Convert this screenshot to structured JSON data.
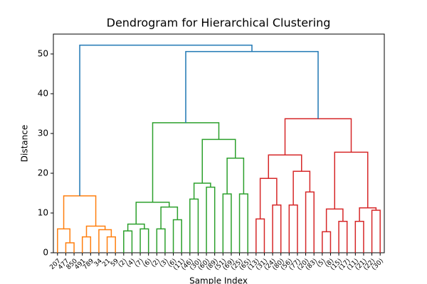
{
  "chart_data": {
    "type": "dendrogram",
    "title": "Dendrogram for Hierarchical Clustering",
    "xlabel": "Sample Index",
    "ylabel": "Distance",
    "ylim": [
      0,
      55
    ],
    "yticks": [
      0,
      10,
      20,
      30,
      40,
      50
    ],
    "tree": {
      "height": 52.2,
      "color": "#1f77b4",
      "children": [
        {
          "height": 14.3,
          "color": "#ff7f0e",
          "children": [
            {
              "height": 6,
              "color": "#ff7f0e",
              "children": [
                {
                  "label": "207"
                },
                {
                  "height": 2.5,
                  "color": "#ff7f0e",
                  "children": [
                    {
                      "label": "477"
                    },
                    {
                      "label": "850"
                    }
                  ]
                }
              ]
            },
            {
              "height": 6.7,
              "color": "#ff7f0e",
              "children": [
                {
                  "height": 4,
                  "color": "#ff7f0e",
                  "children": [
                    {
                      "label": "491"
                    },
                    {
                      "label": "789"
                    }
                  ]
                },
                {
                  "height": 5.8,
                  "color": "#ff7f0e",
                  "children": [
                    {
                      "label": "34"
                    },
                    {
                      "height": 4,
                      "color": "#ff7f0e",
                      "children": [
                        {
                          "label": "21"
                        },
                        {
                          "label": "59"
                        }
                      ]
                    }
                  ]
                }
              ]
            }
          ]
        },
        {
          "height": 50.6,
          "color": "#1f77b4",
          "children": [
            {
              "height": 32.7,
              "color": "#2ca02c",
              "children": [
                {
                  "height": 12.7,
                  "color": "#2ca02c",
                  "children": [
                    {
                      "height": 7.2,
                      "color": "#2ca02c",
                      "children": [
                        {
                          "height": 5.5,
                          "color": "#2ca02c",
                          "children": [
                            {
                              "label": "(2)"
                            },
                            {
                              "label": "(4)"
                            }
                          ]
                        },
                        {
                          "height": 6,
                          "color": "#2ca02c",
                          "children": [
                            {
                              "label": "(7)"
                            },
                            {
                              "label": "(6)"
                            }
                          ]
                        }
                      ]
                    },
                    {
                      "height": 11.5,
                      "color": "#2ca02c",
                      "children": [
                        {
                          "height": 6,
                          "color": "#2ca02c",
                          "children": [
                            {
                              "label": "(2)"
                            },
                            {
                              "label": "(3)"
                            }
                          ]
                        },
                        {
                          "height": 8.3,
                          "color": "#2ca02c",
                          "children": [
                            {
                              "label": "(6)"
                            },
                            {
                              "label": "(11)"
                            }
                          ]
                        }
                      ]
                    }
                  ]
                },
                {
                  "height": 28.5,
                  "color": "#2ca02c",
                  "children": [
                    {
                      "height": 17.5,
                      "color": "#2ca02c",
                      "children": [
                        {
                          "height": 13.5,
                          "color": "#2ca02c",
                          "children": [
                            {
                              "label": "(46)"
                            },
                            {
                              "label": "(30)"
                            }
                          ]
                        },
                        {
                          "height": 16.5,
                          "color": "#2ca02c",
                          "children": [
                            {
                              "label": "(60)"
                            },
                            {
                              "label": "(89)"
                            }
                          ]
                        }
                      ]
                    },
                    {
                      "height": 23.8,
                      "color": "#2ca02c",
                      "children": [
                        {
                          "height": 14.8,
                          "color": "#2ca02c",
                          "children": [
                            {
                              "label": "(51)"
                            },
                            {
                              "label": "(69)"
                            }
                          ]
                        },
                        {
                          "height": 14.8,
                          "color": "#2ca02c",
                          "children": [
                            {
                              "label": "(25)"
                            },
                            {
                              "label": "(65)"
                            }
                          ]
                        }
                      ]
                    }
                  ]
                }
              ]
            },
            {
              "height": 33.7,
              "color": "#d62728",
              "children": [
                {
                  "height": 24.6,
                  "color": "#d62728",
                  "children": [
                    {
                      "height": 18.7,
                      "color": "#d62728",
                      "children": [
                        {
                          "height": 8.5,
                          "color": "#d62728",
                          "children": [
                            {
                              "label": "(13)"
                            },
                            {
                              "label": "(31)"
                            }
                          ]
                        },
                        {
                          "height": 12,
                          "color": "#d62728",
                          "children": [
                            {
                              "label": "(24)"
                            },
                            {
                              "label": "(80)"
                            }
                          ]
                        }
                      ]
                    },
                    {
                      "height": 20.5,
                      "color": "#d62728",
                      "children": [
                        {
                          "height": 12,
                          "color": "#d62728",
                          "children": [
                            {
                              "label": "(56)"
                            },
                            {
                              "label": "(77)"
                            }
                          ]
                        },
                        {
                          "height": 15.3,
                          "color": "#d62728",
                          "children": [
                            {
                              "label": "(20)"
                            },
                            {
                              "label": "(83)"
                            }
                          ]
                        }
                      ]
                    }
                  ]
                },
                {
                  "height": 25.3,
                  "color": "#d62728",
                  "children": [
                    {
                      "height": 11,
                      "color": "#d62728",
                      "children": [
                        {
                          "height": 5.3,
                          "color": "#d62728",
                          "children": [
                            {
                              "label": "(5)"
                            },
                            {
                              "label": "(8)"
                            }
                          ]
                        },
                        {
                          "height": 7.9,
                          "color": "#d62728",
                          "children": [
                            {
                              "label": "(15)"
                            },
                            {
                              "label": "(17)"
                            }
                          ]
                        }
                      ]
                    },
                    {
                      "height": 11.3,
                      "color": "#d62728",
                      "children": [
                        {
                          "height": 7.9,
                          "color": "#d62728",
                          "children": [
                            {
                              "label": "(11)"
                            },
                            {
                              "label": "(21)"
                            }
                          ]
                        },
                        {
                          "height": 10.7,
                          "color": "#d62728",
                          "children": [
                            {
                              "label": "(22)"
                            },
                            {
                              "label": "(30)"
                            }
                          ]
                        }
                      ]
                    }
                  ]
                }
              ]
            }
          ]
        }
      ]
    }
  }
}
